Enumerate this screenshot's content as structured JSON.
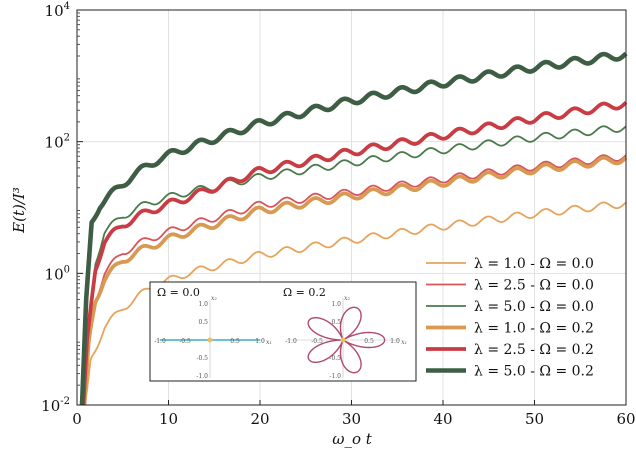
{
  "chart_data": {
    "type": "line",
    "title": "",
    "xlabel": "ω_o t",
    "ylabel": "E(t)/I³",
    "xlim": [
      0,
      60
    ],
    "ylim": [
      0.01,
      10000
    ],
    "yscale": "log",
    "x_ticks": [
      "0",
      "10",
      "20",
      "30",
      "40",
      "50",
      "60"
    ],
    "y_ticks": [
      {
        "base": "10",
        "exp": "-2",
        "value": 0.01
      },
      {
        "base": "10",
        "exp": "0",
        "value": 1
      },
      {
        "base": "10",
        "exp": "2",
        "value": 100
      },
      {
        "base": "10",
        "exp": "4",
        "value": 10000
      }
    ],
    "grid": true,
    "legend_position": "lower-right",
    "series": [
      {
        "name": "λ = 1.0 - Ω = 0.0",
        "color": "#e8a35a",
        "width": 1.8,
        "x": [
          0.9,
          1.5,
          3,
          5,
          8,
          12,
          20,
          30,
          40,
          50,
          60
        ],
        "y": [
          0.01,
          0.05,
          0.15,
          0.3,
          0.6,
          1.0,
          1.9,
          3.2,
          5.2,
          8.0,
          11.5
        ]
      },
      {
        "name": "λ = 2.5 - Ω = 0.0",
        "color": "#d9545a",
        "width": 1.8,
        "x": [
          0.8,
          1.2,
          2,
          3,
          5,
          8,
          12,
          20,
          30,
          40,
          50,
          60
        ],
        "y": [
          0.01,
          0.06,
          0.4,
          1.0,
          2.1,
          3.4,
          5.3,
          11,
          17,
          27,
          42,
          60
        ]
      },
      {
        "name": "λ = 5.0 - Ω = 0.0",
        "color": "#4a7a4a",
        "width": 1.8,
        "x": [
          0.7,
          1.1,
          2,
          3,
          5,
          8,
          12,
          20,
          30,
          40,
          50,
          60
        ],
        "y": [
          0.01,
          0.1,
          1.5,
          4.2,
          7.5,
          12,
          17,
          29,
          48,
          75,
          115,
          165
        ]
      },
      {
        "name": "λ = 1.0 - Ω = 0.2",
        "color": "#d89a52",
        "width": 3.8,
        "x": [
          0.8,
          1.3,
          2,
          3,
          5,
          8,
          12,
          20,
          30,
          40,
          50,
          60
        ],
        "y": [
          0.01,
          0.1,
          0.4,
          0.8,
          1.6,
          2.6,
          4.2,
          9,
          15,
          24,
          38,
          55
        ]
      },
      {
        "name": "λ = 2.5 - Ω = 0.2",
        "color": "#c93c44",
        "width": 3.8,
        "x": [
          0.7,
          1.1,
          2,
          3,
          5,
          8,
          12,
          20,
          30,
          40,
          50,
          60
        ],
        "y": [
          0.01,
          0.1,
          1.2,
          3.0,
          5.5,
          9,
          14,
          36,
          70,
          125,
          225,
          380
        ]
      },
      {
        "name": "λ = 5.0 - Ω = 0.2",
        "color": "#3d5e44",
        "width": 4.6,
        "x": [
          0.55,
          1.0,
          1.6,
          2.5,
          4,
          6,
          9,
          12,
          20,
          30,
          40,
          50,
          60
        ],
        "y": [
          0.01,
          0.4,
          6,
          11,
          17,
          30,
          55,
          80,
          190,
          420,
          780,
          1350,
          2100
        ]
      }
    ],
    "inset": {
      "left_label": "Ω = 0.0",
      "right_label": "Ω = 0.2",
      "x_axis_label": "x₁",
      "y_axis_label": "x₂",
      "x_ticks": [
        "-1.0",
        "-0.5",
        "0.5",
        "1.0"
      ],
      "y_ticks": [
        "1.0",
        "0.5",
        "-0.5",
        "-1.0"
      ],
      "left_line_color": "#6cc3d5",
      "rose_color": "#b04a6a",
      "center_color": "#e8c060"
    }
  }
}
